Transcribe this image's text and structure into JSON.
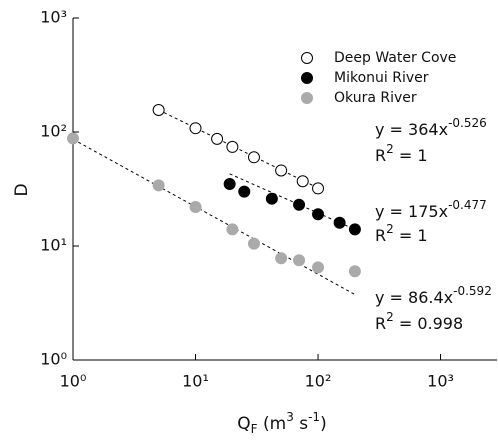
{
  "chart_data": {
    "type": "scatter",
    "log_x": true,
    "log_y": true,
    "xlim": [
      1,
      3000
    ],
    "ylim": [
      1,
      1000
    ],
    "xticks": [
      {
        "value": 1,
        "label": "10⁰"
      },
      {
        "value": 10,
        "label": "10¹"
      },
      {
        "value": 100,
        "label": "10²"
      },
      {
        "value": 1000,
        "label": "10³"
      }
    ],
    "yticks": [
      {
        "value": 1,
        "label": "10⁰"
      },
      {
        "value": 10,
        "label": "10¹"
      },
      {
        "value": 100,
        "label": "10²"
      },
      {
        "value": 1000,
        "label": "10³"
      }
    ],
    "y_label": "D",
    "x_label": [
      {
        "text": "Q"
      },
      {
        "text": "F",
        "shift": "sub"
      },
      {
        "text": " (m"
      },
      {
        "text": "3",
        "shift": "sup"
      },
      {
        "text": " s"
      },
      {
        "text": "-1",
        "shift": "sup"
      },
      {
        "text": ")"
      }
    ],
    "series": [
      {
        "name": "Deep Water Cove",
        "color": "#000000",
        "fill": "#ffffff",
        "x": [
          5,
          10,
          15,
          20,
          30,
          50,
          75,
          100
        ],
        "values": [
          156,
          108,
          87,
          74,
          60,
          46,
          37,
          32
        ],
        "fit": {
          "eq_prefix": "y = ",
          "a": 364,
          "eq_var": "x",
          "b": -0.526,
          "r2_prefix": "R",
          "r2_sup": "2",
          "r2_suffix": " = ",
          "r2": 1,
          "x_range": [
            5,
            100
          ]
        }
      },
      {
        "name": "Mikonui River",
        "color": "#000000",
        "fill": "#000000",
        "x": [
          19,
          25,
          42,
          70,
          100,
          150,
          200
        ],
        "values": [
          35,
          30,
          26,
          23,
          19,
          16,
          14
        ],
        "fit": {
          "eq_prefix": "y = ",
          "a": 175,
          "eq_var": "x",
          "b": -0.477,
          "r2_prefix": "R",
          "r2_sup": "2",
          "r2_suffix": " = ",
          "r2": 1,
          "x_range": [
            19,
            200
          ]
        }
      },
      {
        "name": "Okura River",
        "color": "#aaaaaa",
        "fill": "#aaaaaa",
        "x": [
          1,
          5,
          10,
          20,
          30,
          50,
          70,
          100,
          200
        ],
        "values": [
          88,
          34,
          22,
          14,
          10.5,
          7.8,
          7.5,
          6.5,
          6
        ],
        "fit": {
          "eq_prefix": "y = ",
          "a": 86.4,
          "eq_var": "x",
          "b": -0.592,
          "r2_prefix": "R",
          "r2_sup": "2",
          "r2_suffix": " = ",
          "r2": 0.998,
          "x_range": [
            1,
            200
          ]
        }
      }
    ]
  }
}
